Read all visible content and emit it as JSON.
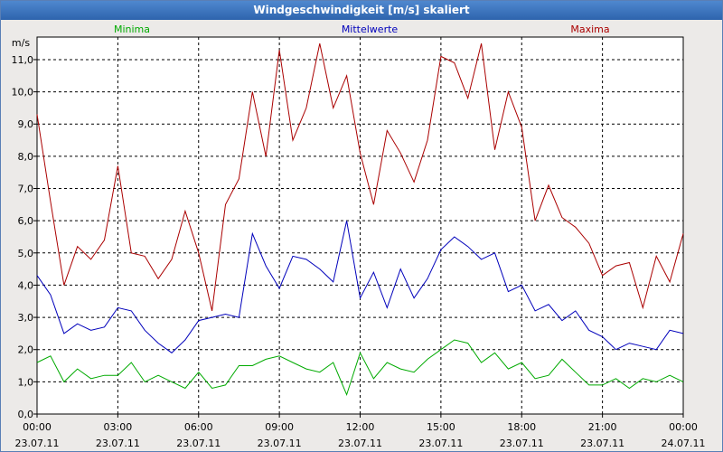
{
  "window": {
    "title": "Windgeschwindigkeit [m/s] skaliert"
  },
  "chart_data": {
    "type": "line",
    "title": "Windgeschwindigkeit [m/s] skaliert",
    "ylabel": "m/s",
    "ylim": [
      0,
      11.7
    ],
    "yticks": [
      0,
      1,
      2,
      3,
      4,
      5,
      6,
      7,
      8,
      9,
      10,
      11
    ],
    "ytick_labels": [
      "0,0",
      "1,0",
      "2,0",
      "3,0",
      "4,0",
      "5,0",
      "6,0",
      "7,0",
      "8,0",
      "9,0",
      "10,0",
      "11,0"
    ],
    "x_range_hours": [
      0,
      24
    ],
    "xticks_hours": [
      0,
      3,
      6,
      9,
      12,
      15,
      18,
      21,
      24
    ],
    "xtick_labels": [
      {
        "time": "00:00",
        "date": "23.07.11"
      },
      {
        "time": "03:00",
        "date": "23.07.11"
      },
      {
        "time": "06:00",
        "date": "23.07.11"
      },
      {
        "time": "09:00",
        "date": "23.07.11"
      },
      {
        "time": "12:00",
        "date": "23.07.11"
      },
      {
        "time": "15:00",
        "date": "23.07.11"
      },
      {
        "time": "18:00",
        "date": "23.07.11"
      },
      {
        "time": "21:00",
        "date": "23.07.11"
      },
      {
        "time": "00:00",
        "date": "24.07.11"
      }
    ],
    "grid": true,
    "legend_position": "top",
    "series": [
      {
        "name": "Minima",
        "color": "#00aa00",
        "x": [
          0,
          0.5,
          1,
          1.5,
          2,
          2.5,
          3,
          3.5,
          4,
          4.5,
          5,
          5.5,
          6,
          6.5,
          7,
          7.5,
          8,
          8.5,
          9,
          9.5,
          10,
          10.5,
          11,
          11.5,
          12,
          12.5,
          13,
          13.5,
          14,
          14.5,
          15,
          15.5,
          16,
          16.5,
          17,
          17.5,
          18,
          18.5,
          19,
          19.5,
          20,
          20.5,
          21,
          21.5,
          22,
          22.5,
          23,
          23.5,
          24
        ],
        "values": [
          1.6,
          1.8,
          1.0,
          1.4,
          1.1,
          1.2,
          1.2,
          1.6,
          1.0,
          1.2,
          1.0,
          0.8,
          1.3,
          0.8,
          0.9,
          1.5,
          1.5,
          1.7,
          1.8,
          1.6,
          1.4,
          1.3,
          1.6,
          0.6,
          1.9,
          1.1,
          1.6,
          1.4,
          1.3,
          1.7,
          2.0,
          2.3,
          2.2,
          1.6,
          1.9,
          1.4,
          1.6,
          1.1,
          1.2,
          1.7,
          1.3,
          0.9,
          0.9,
          1.1,
          0.8,
          1.1,
          1.0,
          1.2,
          1.0
        ]
      },
      {
        "name": "Mittelwerte",
        "color": "#0000bb",
        "x": [
          0,
          0.5,
          1,
          1.5,
          2,
          2.5,
          3,
          3.5,
          4,
          4.5,
          5,
          5.5,
          6,
          6.5,
          7,
          7.5,
          8,
          8.5,
          9,
          9.5,
          10,
          10.5,
          11,
          11.5,
          12,
          12.5,
          13,
          13.5,
          14,
          14.5,
          15,
          15.5,
          16,
          16.5,
          17,
          17.5,
          18,
          18.5,
          19,
          19.5,
          20,
          20.5,
          21,
          21.5,
          22,
          22.5,
          23,
          23.5,
          24
        ],
        "values": [
          4.3,
          3.7,
          2.5,
          2.8,
          2.6,
          2.7,
          3.3,
          3.2,
          2.6,
          2.2,
          1.9,
          2.3,
          2.9,
          3.0,
          3.1,
          3.0,
          5.6,
          4.6,
          3.9,
          4.9,
          4.8,
          4.5,
          4.1,
          6.0,
          3.6,
          4.4,
          3.3,
          4.5,
          3.6,
          4.2,
          5.1,
          5.5,
          5.2,
          4.8,
          5.0,
          3.8,
          4.0,
          3.2,
          3.4,
          2.9,
          3.2,
          2.6,
          2.4,
          2.0,
          2.2,
          2.1,
          2.0,
          2.6,
          2.5
        ]
      },
      {
        "name": "Maxima",
        "color": "#aa0000",
        "x": [
          0,
          0.5,
          1,
          1.5,
          2,
          2.5,
          3,
          3.5,
          4,
          4.5,
          5,
          5.5,
          6,
          6.5,
          7,
          7.5,
          8,
          8.5,
          9,
          9.5,
          10,
          10.5,
          11,
          11.5,
          12,
          12.5,
          13,
          13.5,
          14,
          14.5,
          15,
          15.5,
          16,
          16.5,
          17,
          17.5,
          18,
          18.5,
          19,
          19.5,
          20,
          20.5,
          21,
          21.5,
          22,
          22.5,
          23,
          23.5,
          24
        ],
        "values": [
          9.3,
          6.6,
          4.0,
          5.2,
          4.8,
          5.4,
          7.7,
          5.0,
          4.9,
          4.2,
          4.8,
          6.3,
          5.0,
          3.2,
          6.5,
          7.3,
          10.0,
          8.0,
          11.3,
          8.5,
          9.5,
          11.5,
          9.5,
          10.5,
          8.1,
          6.5,
          8.8,
          8.1,
          7.2,
          8.5,
          11.1,
          10.9,
          9.8,
          11.5,
          8.2,
          10.0,
          8.9,
          6.0,
          7.1,
          6.1,
          5.8,
          5.3,
          4.3,
          4.6,
          4.7,
          3.3,
          4.9,
          4.1,
          5.6
        ]
      }
    ]
  }
}
